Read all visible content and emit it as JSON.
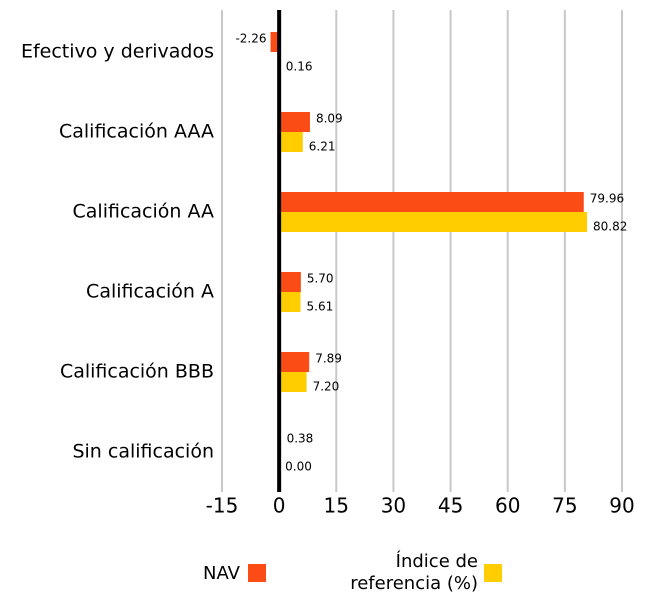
{
  "chart_data": {
    "type": "bar",
    "orientation": "horizontal",
    "categories": [
      "Efectivo y derivados",
      "Calificación AAA",
      "Calificación AA",
      "Calificación A",
      "Calificación BBB",
      "Sin calificación"
    ],
    "series": [
      {
        "name": "NAV",
        "color": "#fc4c16",
        "values": [
          -2.26,
          8.09,
          79.96,
          5.7,
          7.89,
          0.38
        ],
        "value_labels": [
          "-2.26",
          "8.09",
          "79.96",
          "5.70",
          "7.89",
          "0.38"
        ]
      },
      {
        "name": "Índice de referencia (%)",
        "color": "#ffcd00",
        "values": [
          0.16,
          6.21,
          80.82,
          5.61,
          7.2,
          0.0
        ],
        "value_labels": [
          "0.16",
          "6.21",
          "80.82",
          "5.61",
          "7.20",
          "0.00"
        ]
      }
    ],
    "xlim": [
      -15,
      90
    ],
    "xticks": [
      -15,
      0,
      15,
      30,
      45,
      60,
      75,
      90
    ],
    "grid": true,
    "legend": "bottom"
  }
}
